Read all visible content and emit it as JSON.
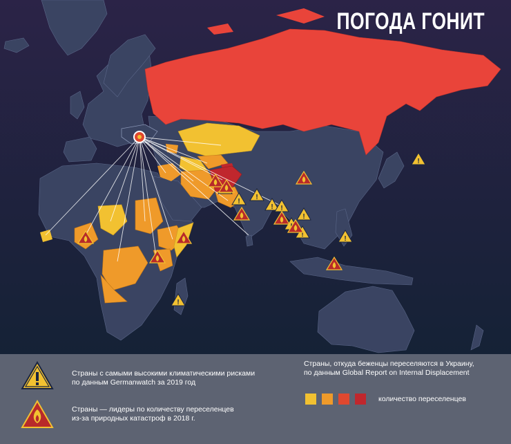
{
  "title": "ПОГОДА ГОНИТ",
  "legend": {
    "climate_risk": {
      "line1": "Страны с самыми высокими климатическими рисками",
      "line2": "по данным Germanwatch за 2019 год",
      "icon": "warning-triangle-icon"
    },
    "disaster_leaders": {
      "line1": "Страны — лидеры по количеству переселенцев",
      "line2": "из-за природных катастроф в 2018 г.",
      "icon": "fire-triangle-icon"
    },
    "source": {
      "line1": "Страны, откуда беженцы переселяются в Украину,",
      "line2": "по данным Global Report on Internal Displacement"
    },
    "scale_label": "количество переселенцев",
    "scale_colors": [
      "#f2c131",
      "#ef9a2a",
      "#e0482f",
      "#c0272d"
    ]
  },
  "colors": {
    "ocean_top": "#2a2448",
    "ocean_bottom": "#17233c",
    "land": "#3a4462",
    "yellow": "#f2c131",
    "orange": "#ef9a2a",
    "red": "#e9443a",
    "dark_red": "#b82a2a",
    "flow_lines": "#ffffff"
  }
}
